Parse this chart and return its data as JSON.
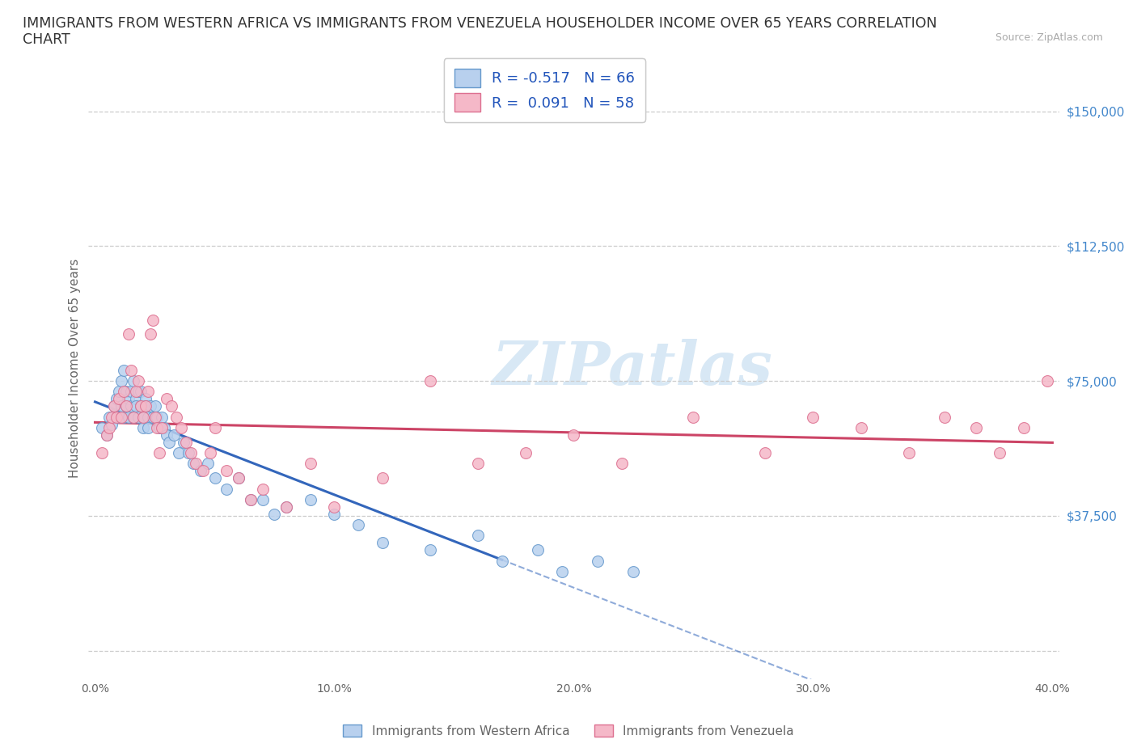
{
  "title_line1": "IMMIGRANTS FROM WESTERN AFRICA VS IMMIGRANTS FROM VENEZUELA HOUSEHOLDER INCOME OVER 65 YEARS CORRELATION",
  "title_line2": "CHART",
  "source": "Source: ZipAtlas.com",
  "ylabel": "Householder Income Over 65 years",
  "xlim": [
    -0.003,
    0.403
  ],
  "ylim": [
    -8000,
    165000
  ],
  "xticks": [
    0.0,
    0.05,
    0.1,
    0.15,
    0.2,
    0.25,
    0.3,
    0.35,
    0.4
  ],
  "xticklabels": [
    "0.0%",
    "",
    "10.0%",
    "",
    "20.0%",
    "",
    "30.0%",
    "",
    "40.0%"
  ],
  "ytick_vals": [
    0,
    37500,
    75000,
    112500,
    150000
  ],
  "ytick_labels": [
    "",
    "$37,500",
    "$75,000",
    "$112,500",
    "$150,000"
  ],
  "legend1_label": "R = -0.517   N = 66",
  "legend2_label": "R =  0.091   N = 58",
  "scatter1_facecolor": "#b8d0ee",
  "scatter1_edgecolor": "#6699cc",
  "scatter2_facecolor": "#f5b8c8",
  "scatter2_edgecolor": "#dd7090",
  "line1_color": "#3366bb",
  "line2_color": "#cc4466",
  "grid_color": "#cccccc",
  "watermark_text": "ZIPatlas",
  "watermark_color": "#d8e8f5",
  "title_fontsize": 12.5,
  "legend_fontsize": 13,
  "ytick_color": "#4488cc",
  "wa_x": [
    0.003,
    0.005,
    0.006,
    0.007,
    0.008,
    0.009,
    0.01,
    0.01,
    0.011,
    0.011,
    0.012,
    0.012,
    0.013,
    0.013,
    0.014,
    0.014,
    0.015,
    0.015,
    0.016,
    0.016,
    0.017,
    0.017,
    0.018,
    0.018,
    0.019,
    0.019,
    0.02,
    0.02,
    0.021,
    0.021,
    0.022,
    0.022,
    0.023,
    0.024,
    0.025,
    0.026,
    0.027,
    0.028,
    0.029,
    0.03,
    0.031,
    0.033,
    0.035,
    0.037,
    0.039,
    0.041,
    0.044,
    0.047,
    0.05,
    0.055,
    0.06,
    0.065,
    0.07,
    0.075,
    0.08,
    0.09,
    0.1,
    0.11,
    0.12,
    0.14,
    0.16,
    0.17,
    0.185,
    0.195,
    0.21,
    0.225
  ],
  "wa_y": [
    62000,
    60000,
    65000,
    63000,
    68000,
    70000,
    72000,
    65000,
    75000,
    68000,
    78000,
    65000,
    72000,
    68000,
    70000,
    65000,
    72000,
    68000,
    75000,
    65000,
    70000,
    68000,
    72000,
    65000,
    68000,
    72000,
    65000,
    62000,
    70000,
    68000,
    65000,
    62000,
    68000,
    65000,
    68000,
    65000,
    62000,
    65000,
    62000,
    60000,
    58000,
    60000,
    55000,
    58000,
    55000,
    52000,
    50000,
    52000,
    48000,
    45000,
    48000,
    42000,
    42000,
    38000,
    40000,
    42000,
    38000,
    35000,
    30000,
    28000,
    32000,
    25000,
    28000,
    22000,
    25000,
    22000
  ],
  "vz_x": [
    0.003,
    0.005,
    0.006,
    0.007,
    0.008,
    0.009,
    0.01,
    0.011,
    0.012,
    0.013,
    0.014,
    0.015,
    0.016,
    0.017,
    0.018,
    0.019,
    0.02,
    0.021,
    0.022,
    0.023,
    0.024,
    0.025,
    0.026,
    0.027,
    0.028,
    0.03,
    0.032,
    0.034,
    0.036,
    0.038,
    0.04,
    0.042,
    0.045,
    0.048,
    0.05,
    0.055,
    0.06,
    0.065,
    0.07,
    0.08,
    0.09,
    0.1,
    0.12,
    0.14,
    0.16,
    0.18,
    0.2,
    0.22,
    0.25,
    0.28,
    0.3,
    0.32,
    0.34,
    0.355,
    0.368,
    0.378,
    0.388,
    0.398
  ],
  "vz_y": [
    55000,
    60000,
    62000,
    65000,
    68000,
    65000,
    70000,
    65000,
    72000,
    68000,
    88000,
    78000,
    65000,
    72000,
    75000,
    68000,
    65000,
    68000,
    72000,
    88000,
    92000,
    65000,
    62000,
    55000,
    62000,
    70000,
    68000,
    65000,
    62000,
    58000,
    55000,
    52000,
    50000,
    55000,
    62000,
    50000,
    48000,
    42000,
    45000,
    40000,
    52000,
    40000,
    48000,
    75000,
    52000,
    55000,
    60000,
    52000,
    65000,
    55000,
    65000,
    62000,
    55000,
    65000,
    62000,
    55000,
    62000,
    75000
  ]
}
